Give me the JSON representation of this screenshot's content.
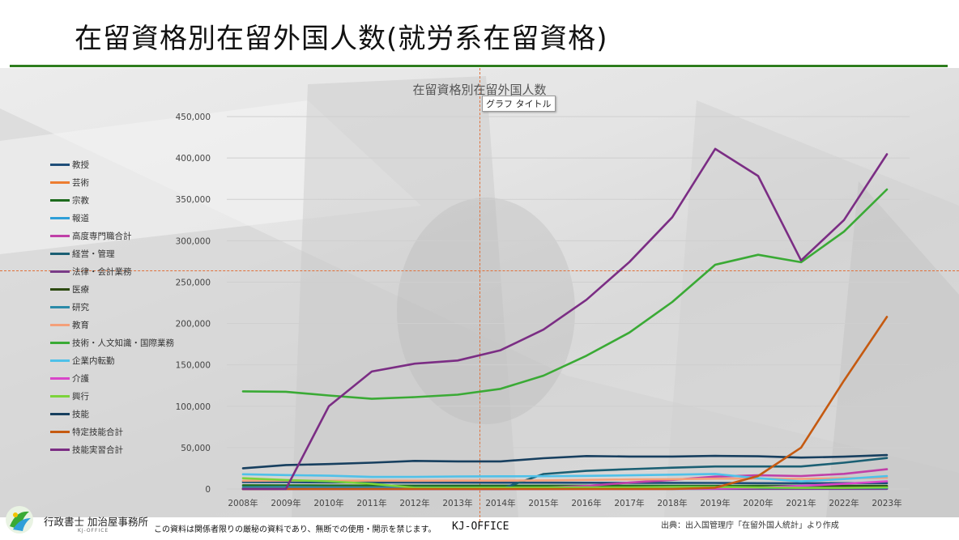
{
  "slide": {
    "title": "在留資格別在留外国人数(就労系在留資格)",
    "tooltip": "グラフ タイトル"
  },
  "footer": {
    "company_name": "行政書士 加治屋事務所",
    "company_sub": "KJ-OFFICE",
    "notice": "この資料は関係者限りの厳秘の資料であり、無断での使用・開示を禁じます。",
    "brand": "KJ-OFFICE",
    "source": "出典：出入国管理庁「在留外国人統計」より作成"
  },
  "chart_data": {
    "type": "line",
    "title": "在留資格別在留外国人数",
    "xlabel": "",
    "ylabel": "",
    "ylim": [
      0,
      450000
    ],
    "yticks": [
      0,
      50000,
      100000,
      150000,
      200000,
      250000,
      300000,
      350000,
      400000,
      450000
    ],
    "ytick_labels": [
      "0",
      "50,000",
      "100,000",
      "150,000",
      "200,000",
      "250,000",
      "300,000",
      "350,000",
      "400,000",
      "450,000"
    ],
    "grid": true,
    "legend_position": "left",
    "categories": [
      "2008年",
      "2009年",
      "2010年",
      "2011年",
      "2012年",
      "2013年",
      "2014年",
      "2015年",
      "2016年",
      "2017年",
      "2018年",
      "2019年",
      "2020年",
      "2021年",
      "2022年",
      "2023年"
    ],
    "series": [
      {
        "name": "教授",
        "color": "#1f4e79",
        "values": [
          8300,
          8300,
          8000,
          7900,
          7800,
          7700,
          7600,
          7600,
          7500,
          7400,
          7400,
          7300,
          7000,
          6900,
          7000,
          7100
        ]
      },
      {
        "name": "芸術",
        "color": "#ed7d31",
        "values": [
          450,
          450,
          450,
          450,
          430,
          400,
          400,
          430,
          440,
          430,
          460,
          490,
          450,
          450,
          460,
          480
        ]
      },
      {
        "name": "宗教",
        "color": "#1e6b1e",
        "values": [
          4500,
          4400,
          4200,
          4100,
          4000,
          4000,
          4000,
          4000,
          4000,
          4000,
          3900,
          3900,
          3800,
          3800,
          3800,
          3900
        ]
      },
      {
        "name": "報道",
        "color": "#2e9fd8",
        "values": [
          280,
          260,
          250,
          230,
          230,
          220,
          220,
          230,
          250,
          240,
          230,
          220,
          220,
          210,
          210,
          210
        ]
      },
      {
        "name": "高度専門職合計",
        "color": "#c040a8",
        "values": [
          0,
          0,
          0,
          0,
          0,
          0,
          0,
          1500,
          3700,
          7700,
          11000,
          15000,
          16500,
          15700,
          18300,
          23900
        ]
      },
      {
        "name": "経営・管理",
        "color": "#1b5f73",
        "values": [
          0,
          0,
          0,
          0,
          0,
          0,
          0,
          18100,
          21900,
          24000,
          25700,
          27200,
          27200,
          27200,
          31800,
          37500
        ]
      },
      {
        "name": "法律・会計業務",
        "color": "#7a3b87",
        "values": [
          160,
          160,
          170,
          170,
          160,
          160,
          140,
          140,
          150,
          150,
          150,
          150,
          150,
          150,
          150,
          160
        ]
      },
      {
        "name": "医療",
        "color": "#2d4a12",
        "values": [
          200,
          220,
          260,
          320,
          400,
          530,
          700,
          1000,
          1300,
          1600,
          1900,
          2200,
          2300,
          2500,
          2800,
          3200
        ]
      },
      {
        "name": "研究",
        "color": "#2b8aa8",
        "values": [
          2200,
          2300,
          2200,
          2100,
          1900,
          1800,
          1800,
          1700,
          1600,
          1600,
          1500,
          1500,
          1400,
          1400,
          1300,
          1300
        ]
      },
      {
        "name": "教育",
        "color": "#f4a07a",
        "values": [
          10000,
          10200,
          10000,
          10100,
          10000,
          10100,
          10100,
          10400,
          11000,
          11500,
          11800,
          12500,
          12500,
          12200,
          13000,
          13600
        ]
      },
      {
        "name": "技術・人文知識・国際業務",
        "color": "#3aaa35",
        "values": [
          118000,
          117500,
          113000,
          109000,
          111000,
          114000,
          121000,
          137000,
          161000,
          189000,
          226000,
          271000,
          283000,
          274000,
          311000,
          362000
        ]
      },
      {
        "name": "企業内転勤",
        "color": "#4fc1e9",
        "values": [
          17800,
          16800,
          16000,
          14600,
          14700,
          15200,
          15400,
          15500,
          15800,
          16500,
          17300,
          18200,
          13000,
          9200,
          12000,
          15600
        ]
      },
      {
        "name": "介護",
        "color": "#d946c9",
        "values": [
          0,
          0,
          0,
          0,
          0,
          0,
          0,
          0,
          0,
          18,
          180,
          600,
          1700,
          3800,
          6300,
          9300
        ]
      },
      {
        "name": "興行",
        "color": "#7cd33b",
        "values": [
          13000,
          10900,
          9300,
          6300,
          1600,
          1600,
          1700,
          1800,
          1900,
          2000,
          2400,
          2400,
          1900,
          1400,
          1400,
          2000
        ]
      },
      {
        "name": "技能",
        "color": "#173f5f",
        "values": [
          25000,
          29000,
          30100,
          31800,
          33900,
          33400,
          33400,
          37200,
          39800,
          39200,
          39200,
          40000,
          39500,
          38000,
          39000,
          41000
        ]
      },
      {
        "name": "特定技能合計",
        "color": "#c55a11",
        "values": [
          0,
          0,
          0,
          0,
          0,
          0,
          0,
          0,
          0,
          0,
          0,
          1600,
          15700,
          50000,
          131000,
          208000
        ]
      },
      {
        "name": "技能実習合計",
        "color": "#7b2d84",
        "values": [
          0,
          0,
          100000,
          141994,
          151477,
          155206,
          167626,
          192655,
          228588,
          274233,
          328360,
          410972,
          378200,
          276123,
          324940,
          404556
        ]
      }
    ]
  }
}
